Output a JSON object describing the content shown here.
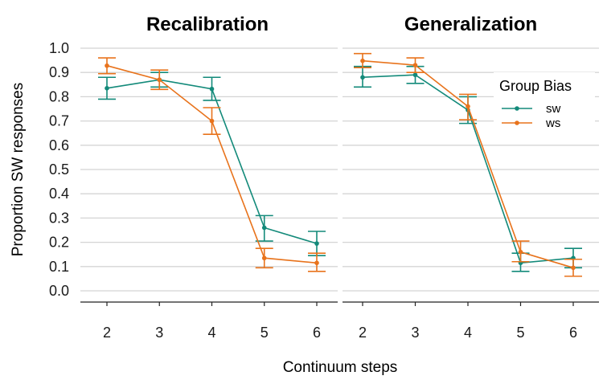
{
  "chart_data": {
    "type": "line",
    "xlabel": "Continuum steps",
    "ylabel": "Proportion SW responses",
    "ylim": [
      0.0,
      1.0
    ],
    "yticks": [
      "0.0",
      "0.1",
      "0.2",
      "0.3",
      "0.4",
      "0.5",
      "0.6",
      "0.7",
      "0.8",
      "0.9",
      "1.0"
    ],
    "grid": true,
    "legend": {
      "title": "Group Bias",
      "placement": "top-right",
      "entries": [
        {
          "name": "SW",
          "label": "sw",
          "color": "#138a7a"
        },
        {
          "name": "WS",
          "label": "ws",
          "color": "#e8731c"
        }
      ]
    },
    "panels": [
      {
        "title": "Recalibration",
        "x": [
          2,
          3,
          4,
          5,
          6
        ],
        "series": [
          {
            "name": "SW",
            "color": "#138a7a",
            "values": [
              0.835,
              0.87,
              0.832,
              0.26,
              0.195
            ],
            "lower": [
              0.79,
              0.84,
              0.785,
              0.205,
              0.145
            ],
            "upper": [
              0.88,
              0.9,
              0.88,
              0.31,
              0.245
            ]
          },
          {
            "name": "WS",
            "color": "#e8731c",
            "values": [
              0.928,
              0.87,
              0.7,
              0.135,
              0.115
            ],
            "lower": [
              0.895,
              0.83,
              0.645,
              0.095,
              0.08
            ],
            "upper": [
              0.96,
              0.91,
              0.755,
              0.175,
              0.155
            ]
          }
        ]
      },
      {
        "title": "Generalization",
        "x": [
          2,
          3,
          4,
          5,
          6
        ],
        "series": [
          {
            "name": "SW",
            "color": "#138a7a",
            "values": [
              0.88,
              0.89,
              0.745,
              0.115,
              0.135
            ],
            "lower": [
              0.84,
              0.855,
              0.69,
              0.08,
              0.095
            ],
            "upper": [
              0.925,
              0.925,
              0.8,
              0.155,
              0.175
            ]
          },
          {
            "name": "WS",
            "color": "#e8731c",
            "values": [
              0.948,
              0.93,
              0.76,
              0.16,
              0.095
            ],
            "lower": [
              0.92,
              0.9,
              0.705,
              0.12,
              0.06
            ],
            "upper": [
              0.978,
              0.96,
              0.81,
              0.205,
              0.13
            ]
          }
        ]
      }
    ]
  }
}
